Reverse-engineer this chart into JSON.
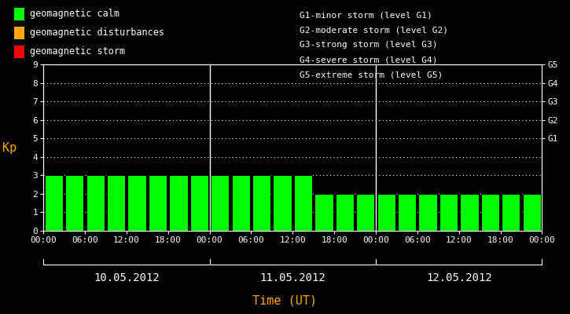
{
  "background_color": "#000000",
  "bar_color": "#00ff00",
  "bar_edge_color": "#000000",
  "grid_color": "#ffffff",
  "axis_color": "#ffffff",
  "text_color": "#ffffff",
  "orange_color": "#ffa500",
  "kp_values": [
    3,
    3,
    3,
    3,
    3,
    3,
    3,
    3,
    3,
    3,
    3,
    3,
    3,
    2,
    2,
    2,
    2,
    2,
    2,
    2,
    2,
    2,
    2,
    2
  ],
  "n_days": 3,
  "bars_per_day": 8,
  "ylim": [
    0,
    9
  ],
  "yticks": [
    0,
    1,
    2,
    3,
    4,
    5,
    6,
    7,
    8,
    9
  ],
  "right_yticks": [
    5,
    6,
    7,
    8,
    9
  ],
  "right_yticklabels": [
    "G1",
    "G2",
    "G3",
    "G4",
    "G5"
  ],
  "date_labels": [
    "10.05.2012",
    "11.05.2012",
    "12.05.2012"
  ],
  "xtick_hours": [
    "00:00",
    "06:00",
    "12:00",
    "18:00"
  ],
  "ylabel": "Kp",
  "xlabel": "Time (UT)",
  "legend_items": [
    {
      "label": "geomagnetic calm",
      "color": "#00ff00"
    },
    {
      "label": "geomagnetic disturbances",
      "color": "#ffa500"
    },
    {
      "label": "geomagnetic storm",
      "color": "#ff0000"
    }
  ],
  "right_legend_lines": [
    "G1-minor storm (level G1)",
    "G2-moderate storm (level G2)",
    "G3-strong storm (level G3)",
    "G4-severe storm (level G4)",
    "G5-extreme storm (level G5)"
  ],
  "font_family": "monospace",
  "bar_width": 0.88
}
